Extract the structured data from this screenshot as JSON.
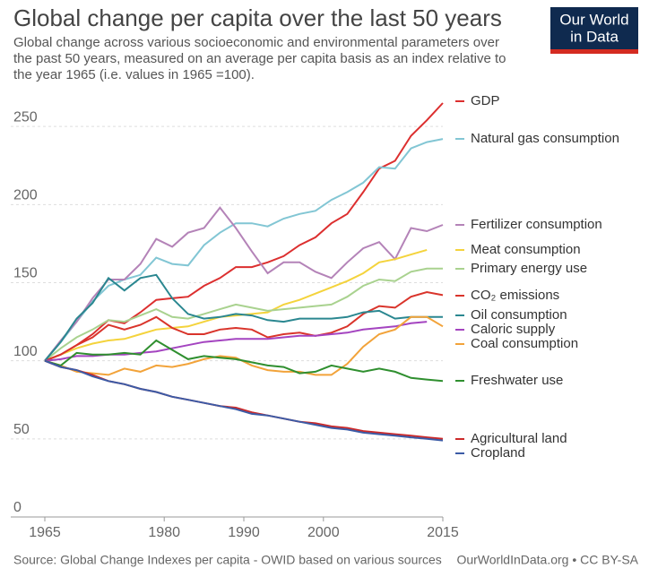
{
  "logo": [
    "Our World",
    "in Data"
  ],
  "chart_data": {
    "type": "line",
    "title": "Global change per capita over the last 50 years",
    "subtitle": [
      "Global change across various socioeconomic and environmental parameters over",
      "the past 50 years, measured on an average per capita basis as an index relative to",
      "the year 1965 (i.e. values in 1965 =100)."
    ],
    "source": "Source: Global Change Indexes per capita - OWID based on various sources",
    "license": "OurWorldInData.org • CC BY-SA",
    "x": [
      1965,
      1967,
      1969,
      1971,
      1973,
      1975,
      1977,
      1979,
      1981,
      1983,
      1985,
      1987,
      1989,
      1991,
      1993,
      1995,
      1997,
      1999,
      2001,
      2003,
      2005,
      2007,
      2009,
      2011,
      2013,
      2015
    ],
    "xlim": [
      1965,
      2015
    ],
    "xticks": [
      1965,
      1980,
      1990,
      2000,
      2015
    ],
    "ylim": [
      0,
      265
    ],
    "yticks": [
      0,
      50,
      100,
      150,
      200,
      250
    ],
    "grid": true,
    "series": [
      {
        "name": "GDP",
        "color": "#dc2f2f",
        "values": [
          100,
          104,
          110,
          117,
          126,
          124,
          131,
          139,
          140,
          141,
          148,
          153,
          160,
          160,
          163,
          167,
          174,
          179,
          188,
          194,
          208,
          223,
          228,
          244,
          254,
          265
        ]
      },
      {
        "name": "Natural gas consumption",
        "color": "#82c6d4",
        "values": [
          100,
          112,
          125,
          138,
          148,
          152,
          155,
          166,
          162,
          161,
          174,
          182,
          188,
          188,
          186,
          191,
          194,
          196,
          203,
          208,
          214,
          224,
          223,
          236,
          240,
          242
        ]
      },
      {
        "name": "Fertilizer consumption",
        "color": "#b483b8",
        "values": [
          100,
          113,
          125,
          140,
          152,
          152,
          162,
          178,
          173,
          182,
          185,
          198,
          185,
          170,
          156,
          163,
          163,
          157,
          153,
          163,
          172,
          176,
          165,
          185,
          183,
          187
        ]
      },
      {
        "name": "Meat consumption",
        "color": "#f4d33c",
        "values": [
          100,
          104,
          108,
          111,
          113,
          114,
          117,
          120,
          121,
          122,
          125,
          128,
          129,
          130,
          131,
          136,
          139,
          143,
          147,
          151,
          156,
          163,
          165,
          168,
          171,
          null
        ]
      },
      {
        "name": "Primary energy use",
        "color": "#a9d28f",
        "values": [
          100,
          108,
          115,
          120,
          126,
          125,
          129,
          133,
          128,
          127,
          130,
          133,
          136,
          134,
          132,
          133,
          134,
          135,
          136,
          141,
          148,
          152,
          151,
          157,
          159,
          159
        ]
      },
      {
        "name": "CO₂ emissions",
        "color": "#d9342b",
        "values": [
          100,
          104,
          110,
          115,
          123,
          120,
          123,
          128,
          121,
          117,
          117,
          120,
          121,
          120,
          115,
          117,
          118,
          116,
          118,
          122,
          130,
          135,
          134,
          141,
          144,
          142
        ]
      },
      {
        "name": "Oil consumption",
        "color": "#2a8790",
        "values": [
          100,
          112,
          127,
          137,
          153,
          145,
          153,
          155,
          140,
          130,
          127,
          128,
          130,
          129,
          126,
          125,
          127,
          127,
          127,
          128,
          131,
          132,
          127,
          128,
          128,
          128
        ]
      },
      {
        "name": "Caloric supply",
        "color": "#a444c0",
        "values": [
          100,
          101,
          103,
          103,
          104,
          104,
          105,
          106,
          108,
          110,
          112,
          113,
          114,
          114,
          114,
          115,
          116,
          116,
          117,
          118,
          120,
          121,
          122,
          124,
          125,
          null
        ]
      },
      {
        "name": "Coal consumption",
        "color": "#f2a33a",
        "values": [
          100,
          97,
          93,
          92,
          91,
          95,
          93,
          97,
          96,
          98,
          101,
          103,
          102,
          97,
          94,
          93,
          93,
          91,
          91,
          98,
          109,
          117,
          120,
          128,
          128,
          122
        ]
      },
      {
        "name": "Freshwater use",
        "color": "#2f8f2f",
        "values": [
          100,
          97,
          105,
          104,
          104,
          105,
          104,
          113,
          107,
          101,
          103,
          102,
          101,
          99,
          97,
          96,
          92,
          93,
          97,
          95,
          93,
          95,
          93,
          89,
          88,
          87
        ]
      },
      {
        "name": "Agricultural land",
        "color": "#cc2a2a",
        "values": [
          100,
          96,
          94,
          91,
          87,
          85,
          82,
          80,
          77,
          75,
          73,
          71,
          70,
          67,
          65,
          63,
          61,
          60,
          58,
          57,
          55,
          54,
          53,
          52,
          51,
          50
        ]
      },
      {
        "name": "Cropland",
        "color": "#3b5ba6",
        "values": [
          100,
          96,
          94,
          90,
          87,
          85,
          82,
          80,
          77,
          75,
          73,
          71,
          69,
          66,
          65,
          63,
          61,
          59,
          57,
          56,
          54,
          53,
          52,
          51,
          50,
          49
        ]
      }
    ]
  }
}
